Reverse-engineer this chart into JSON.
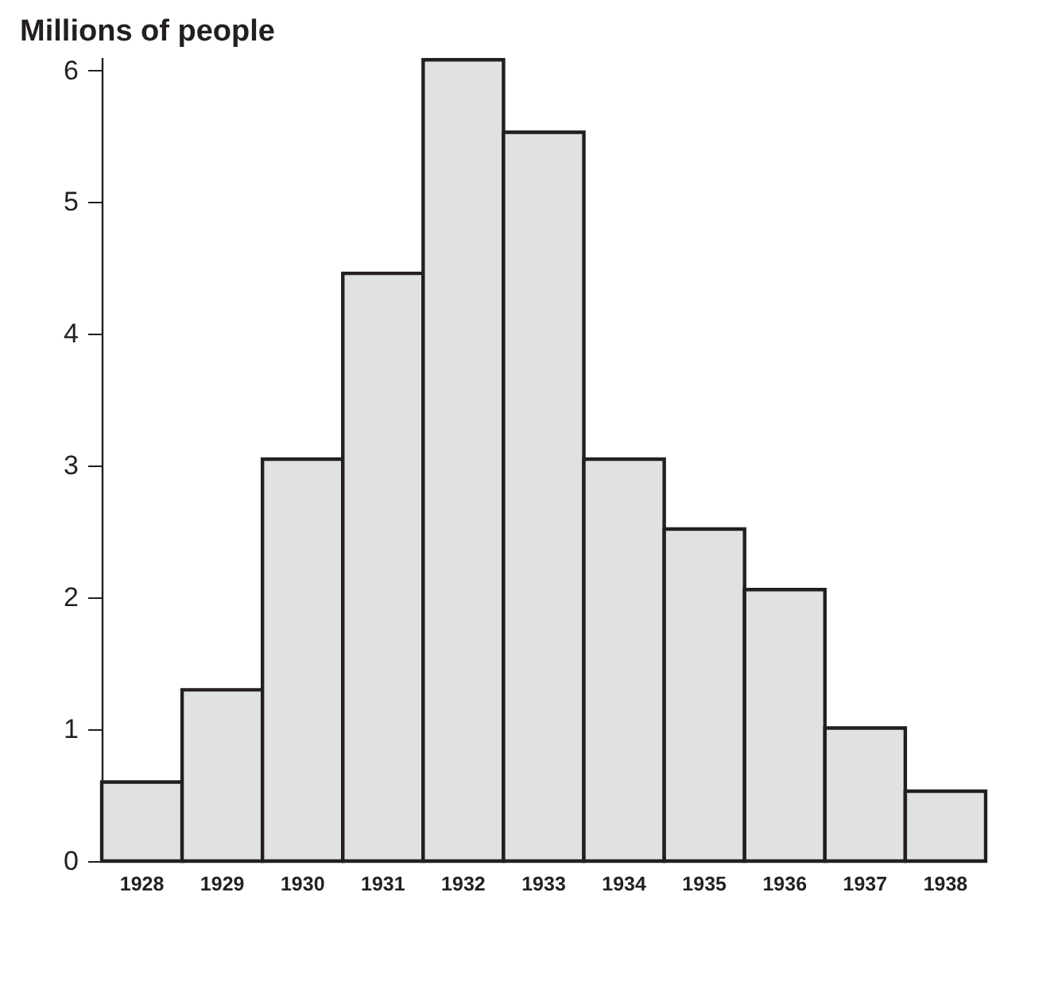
{
  "chart_data": {
    "type": "bar",
    "title": "Millions of people",
    "categories": [
      "1928",
      "1929",
      "1930",
      "1931",
      "1932",
      "1933",
      "1934",
      "1935",
      "1936",
      "1937",
      "1938"
    ],
    "values": [
      0.6,
      1.3,
      3.05,
      4.46,
      6.08,
      5.53,
      3.05,
      2.52,
      2.06,
      1.01,
      0.53
    ],
    "color": "#e0e1e3",
    "ylim": [
      0,
      6.1
    ],
    "yticks": [
      0,
      1,
      2,
      3,
      4,
      5,
      6
    ],
    "grid": false
  }
}
